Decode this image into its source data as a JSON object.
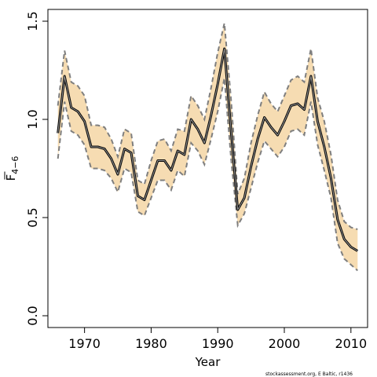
{
  "chart_data": {
    "type": "line",
    "title": "",
    "xlabel": "Year",
    "ylabel_main": "F",
    "ylabel_sub": "4−6",
    "xlim": [
      1964.5,
      2012.5
    ],
    "ylim": [
      -0.06,
      1.56
    ],
    "x_ticks": [
      1970,
      1980,
      1990,
      2000,
      2010
    ],
    "y_ticks": [
      0.0,
      0.5,
      1.0,
      1.5
    ],
    "y_tick_labels": [
      "0.0",
      "0.5",
      "1.0",
      "1.5"
    ],
    "grid": false,
    "colors": {
      "band_fill": "#f6dcb2",
      "band_edge": "#7f7f7f",
      "estimate_line": "#000000",
      "estimate_inner": "#9a9a9a"
    },
    "series": [
      {
        "x": [
          1966,
          1967,
          1968,
          1969,
          1970,
          1971,
          1972,
          1973,
          1974,
          1975,
          1976,
          1977,
          1978,
          1979,
          1980,
          1981,
          1982,
          1983,
          1984,
          1985,
          1986,
          1987,
          1988,
          1989,
          1990,
          1991,
          1992,
          1993,
          1994,
          1995,
          1996,
          1997,
          1998,
          1999,
          2000,
          2001,
          2002,
          2003,
          2004,
          2005,
          2006,
          2007,
          2008,
          2009,
          2010,
          2011
        ],
        "estimate": [
          0.93,
          1.22,
          1.06,
          1.04,
          0.99,
          0.86,
          0.86,
          0.85,
          0.8,
          0.72,
          0.85,
          0.83,
          0.61,
          0.59,
          0.69,
          0.79,
          0.79,
          0.74,
          0.84,
          0.82,
          1.0,
          0.95,
          0.88,
          1.02,
          1.18,
          1.36,
          0.94,
          0.54,
          0.6,
          0.76,
          0.9,
          1.01,
          0.96,
          0.92,
          0.99,
          1.07,
          1.08,
          1.05,
          1.22,
          0.99,
          0.86,
          0.7,
          0.49,
          0.39,
          0.35,
          0.33
        ],
        "upper": [
          1.07,
          1.35,
          1.19,
          1.17,
          1.12,
          0.97,
          0.97,
          0.96,
          0.9,
          0.81,
          0.95,
          0.93,
          0.69,
          0.67,
          0.79,
          0.89,
          0.9,
          0.84,
          0.95,
          0.94,
          1.12,
          1.07,
          1.0,
          1.16,
          1.34,
          1.49,
          1.1,
          0.62,
          0.7,
          0.88,
          1.02,
          1.14,
          1.08,
          1.04,
          1.12,
          1.2,
          1.22,
          1.19,
          1.36,
          1.11,
          0.99,
          0.82,
          0.59,
          0.48,
          0.45,
          0.44
        ],
        "lower": [
          0.8,
          1.09,
          0.94,
          0.92,
          0.87,
          0.75,
          0.75,
          0.74,
          0.7,
          0.63,
          0.75,
          0.73,
          0.53,
          0.51,
          0.6,
          0.69,
          0.69,
          0.64,
          0.74,
          0.71,
          0.88,
          0.84,
          0.77,
          0.9,
          1.04,
          1.21,
          0.8,
          0.46,
          0.52,
          0.65,
          0.78,
          0.89,
          0.85,
          0.81,
          0.86,
          0.94,
          0.95,
          0.92,
          1.09,
          0.87,
          0.74,
          0.6,
          0.37,
          0.29,
          0.26,
          0.23
        ]
      }
    ]
  },
  "credit": "stockassessment.org, E Baltic, r1436"
}
